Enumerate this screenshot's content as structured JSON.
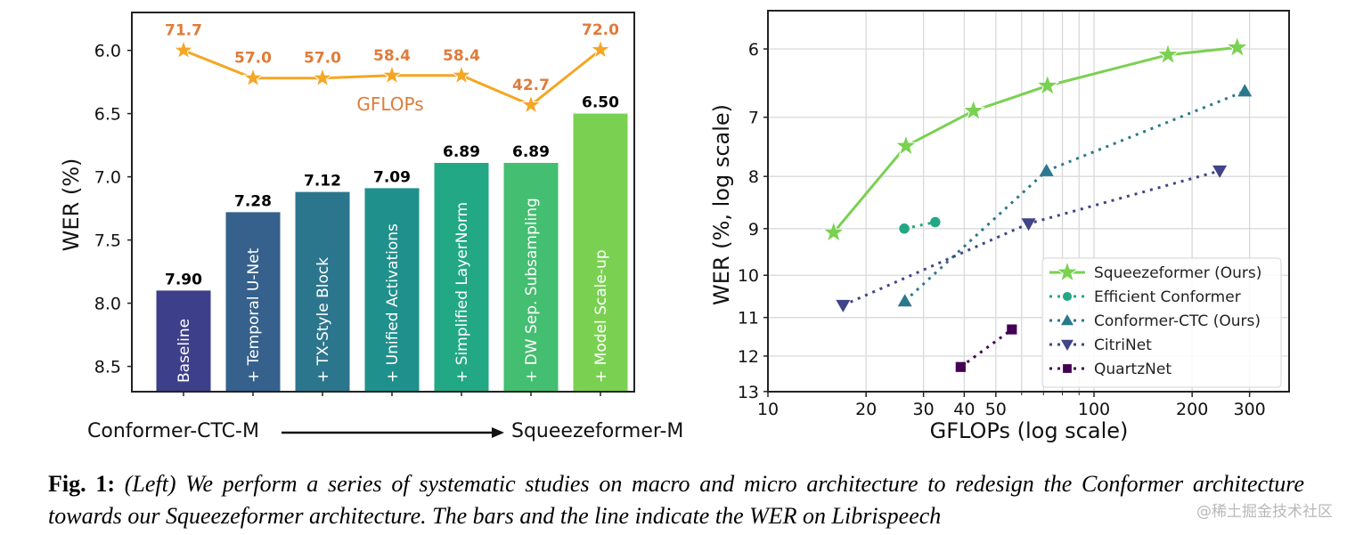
{
  "chart_data": [
    {
      "type": "bar",
      "title": "",
      "ylabel": "WER (%)",
      "xlabel": "",
      "ylim": [
        8.7,
        5.7
      ],
      "y_inverted": true,
      "yticks": [
        "6.0",
        "6.5",
        "7.0",
        "7.5",
        "8.0",
        "8.5"
      ],
      "ytick_values": [
        6.0,
        6.5,
        7.0,
        7.5,
        8.0,
        8.5
      ],
      "categories": [
        "Baseline",
        "+ Temporal U-Net",
        "+ TX-Style Block",
        "+ Unified Activations",
        "+ Simplified LayerNorm",
        "+ DW Sep. Subsampling",
        "+ Model Scale-up"
      ],
      "values": [
        7.9,
        7.28,
        7.12,
        7.09,
        6.89,
        6.89,
        6.5
      ],
      "value_labels": [
        "7.90",
        "7.28",
        "7.12",
        "7.09",
        "6.89",
        "6.89",
        "6.50"
      ],
      "bar_colors": [
        "#3e3f8a",
        "#35618c",
        "#2c768d",
        "#20908c",
        "#22a884",
        "#44be70",
        "#7ad151"
      ],
      "line_series": {
        "name": "GFLOPs",
        "label": "GFLOPs",
        "values": [
          71.7,
          57.0,
          57.0,
          58.4,
          58.4,
          42.7,
          72.0
        ],
        "value_labels": [
          "71.7",
          "57.0",
          "57.0",
          "58.4",
          "58.4",
          "42.7",
          "72.0"
        ],
        "color": "#f5a623",
        "label_color": "#e07b39",
        "marker": "star"
      },
      "annotation": {
        "from": "Conformer-CTC-M",
        "to": "Squeezeformer-M"
      }
    },
    {
      "type": "line",
      "title": "",
      "xlabel": "GFLOPs (log scale)",
      "ylabel": "WER (%, log scale)",
      "xscale": "log",
      "yscale": "log",
      "xlim": [
        10,
        400
      ],
      "ylim": [
        13,
        5.5
      ],
      "y_inverted": true,
      "grid": true,
      "legend_position": "bottom-right",
      "xticks": [
        "10",
        "20",
        "30",
        "40",
        "50",
        "100",
        "200",
        "300"
      ],
      "xtick_values": [
        10,
        20,
        30,
        40,
        50,
        100,
        200,
        300
      ],
      "yticks": [
        "6",
        "7",
        "8",
        "9",
        "10",
        "11",
        "12",
        "13"
      ],
      "ytick_values": [
        6,
        7,
        8,
        9,
        10,
        11,
        12,
        13
      ],
      "series": [
        {
          "name": "Squeezeformer (Ours)",
          "color": "#7ad151",
          "marker": "star",
          "linestyle": "solid",
          "x": [
            15.9,
            26.5,
            42.7,
            72.0,
            168.6,
            275
          ],
          "y": [
            9.08,
            7.47,
            6.9,
            6.52,
            6.08,
            5.98
          ]
        },
        {
          "name": "Efficient Conformer",
          "color": "#22a884",
          "marker": "circle",
          "linestyle": "dotted",
          "x": [
            26.2,
            32.6
          ],
          "y": [
            9.0,
            8.87
          ]
        },
        {
          "name": "Conformer-CTC (Ours)",
          "color": "#2a788e",
          "marker": "triangle-up",
          "linestyle": "dotted",
          "x": [
            26.3,
            71.5,
            290
          ],
          "y": [
            10.6,
            7.9,
            6.6
          ]
        },
        {
          "name": "CitriNet",
          "color": "#414487",
          "marker": "triangle-down",
          "linestyle": "dotted",
          "x": [
            17,
            63,
            243
          ],
          "y": [
            10.7,
            8.9,
            7.9
          ]
        },
        {
          "name": "QuartzNet",
          "color": "#440154",
          "marker": "square",
          "linestyle": "dotted",
          "x": [
            39,
            56
          ],
          "y": [
            12.3,
            11.3
          ]
        }
      ]
    }
  ],
  "caption": {
    "fig_label": "Fig. 1:",
    "text": " (Left) We perform a series of systematic studies on macro and micro architecture to redesign the Conformer architecture towards our Squeezeformer architecture. The bars and the line indicate the WER on Librispeech"
  },
  "watermark": "@稀土掘金技术社区"
}
